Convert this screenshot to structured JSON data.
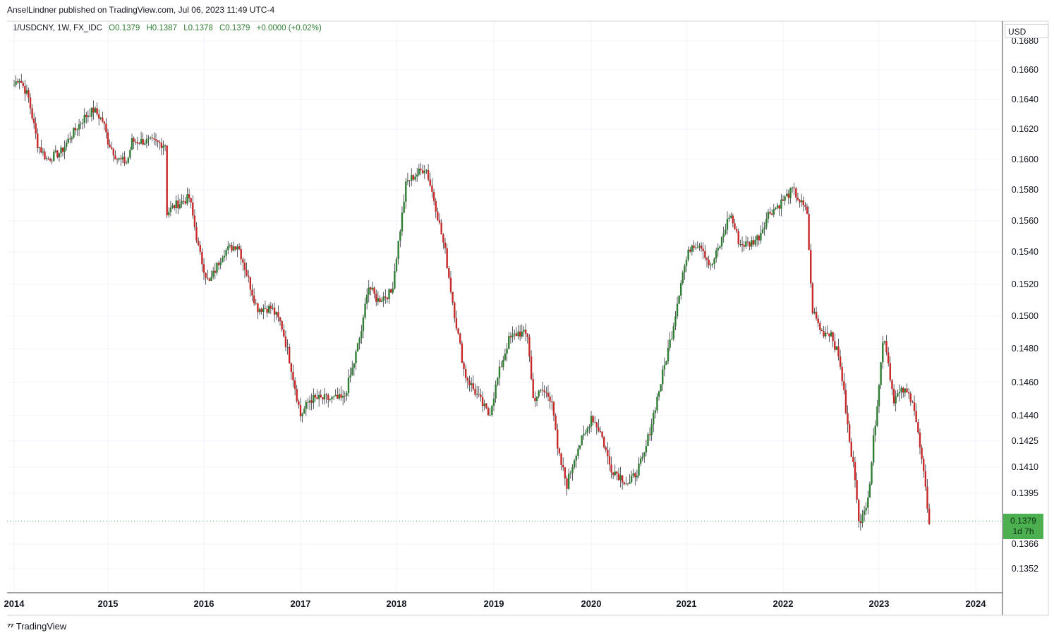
{
  "header": {
    "publisher": "AnselLindner published on TradingView.com, Jul 06, 2023 11:49 UTC-4"
  },
  "legend": {
    "symbol": "1/USDCNY, 1W, FX_IDC",
    "open": "O0.1379",
    "high": "H0.1387",
    "low": "L0.1378",
    "close": "C0.1379",
    "change": "+0.0000 (+0.02%)"
  },
  "currency_label": "USD",
  "last_price": {
    "value": "0.1379",
    "countdown": "1d 7h"
  },
  "footer": {
    "brand": "TradingView"
  },
  "colors": {
    "up": "#2e7d32",
    "down": "#c62828",
    "grid": "#f0f3fa",
    "tag": "#4caf50"
  },
  "chart_data": {
    "type": "candlestick",
    "interval": "1W",
    "series_name": "1/USDCNY",
    "x_tick_labels": [
      "2014",
      "2015",
      "2016",
      "2017",
      "2018",
      "2019",
      "2020",
      "2021",
      "2022",
      "2023",
      "2024"
    ],
    "y_tick_labels": [
      "0.1680",
      "0.1660",
      "0.1640",
      "0.1620",
      "0.1600",
      "0.1580",
      "0.1560",
      "0.1540",
      "0.1520",
      "0.1500",
      "0.1480",
      "0.1460",
      "0.1440",
      "0.1425",
      "0.1410",
      "0.1395",
      "0.1366",
      "0.1352"
    ],
    "y_scale": "nonlinear (price scale)",
    "grid": true,
    "close_path": [
      [
        "2014.00",
        0.165
      ],
      [
        "2014.05",
        0.1655
      ],
      [
        "2014.15",
        0.1642
      ],
      [
        "2014.25",
        0.161
      ],
      [
        "2014.35",
        0.16
      ],
      [
        "2014.50",
        0.1605
      ],
      [
        "2014.60",
        0.1615
      ],
      [
        "2014.75",
        0.1628
      ],
      [
        "2014.85",
        0.1633
      ],
      [
        "2014.95",
        0.1625
      ],
      [
        "2015.00",
        0.1612
      ],
      [
        "2015.10",
        0.16
      ],
      [
        "2015.20",
        0.1598
      ],
      [
        "2015.25",
        0.1612
      ],
      [
        "2015.40",
        0.1612
      ],
      [
        "2015.60",
        0.161
      ],
      [
        "2015.61",
        0.1565
      ],
      [
        "2015.70",
        0.157
      ],
      [
        "2015.85",
        0.1575
      ],
      [
        "2015.95",
        0.154
      ],
      [
        "2016.05",
        0.152
      ],
      [
        "2016.20",
        0.154
      ],
      [
        "2016.35",
        0.1545
      ],
      [
        "2016.45",
        0.1525
      ],
      [
        "2016.55",
        0.1505
      ],
      [
        "2016.70",
        0.1505
      ],
      [
        "2016.80",
        0.1495
      ],
      [
        "2016.90",
        0.147
      ],
      [
        "2017.00",
        0.144
      ],
      [
        "2017.10",
        0.145
      ],
      [
        "2017.30",
        0.145
      ],
      [
        "2017.45",
        0.145
      ],
      [
        "2017.55",
        0.147
      ],
      [
        "2017.65",
        0.1495
      ],
      [
        "2017.70",
        0.152
      ],
      [
        "2017.80",
        0.151
      ],
      [
        "2017.95",
        0.1515
      ],
      [
        "2018.05",
        0.156
      ],
      [
        "2018.10",
        0.1585
      ],
      [
        "2018.20",
        0.159
      ],
      [
        "2018.30",
        0.1595
      ],
      [
        "2018.40",
        0.157
      ],
      [
        "2018.50",
        0.154
      ],
      [
        "2018.60",
        0.15
      ],
      [
        "2018.70",
        0.1465
      ],
      [
        "2018.85",
        0.145
      ],
      [
        "2018.95",
        0.144
      ],
      [
        "2019.05",
        0.1465
      ],
      [
        "2019.15",
        0.1485
      ],
      [
        "2019.25",
        0.149
      ],
      [
        "2019.35",
        0.1488
      ],
      [
        "2019.40",
        0.145
      ],
      [
        "2019.50",
        0.1455
      ],
      [
        "2019.60",
        0.145
      ],
      [
        "2019.65",
        0.142
      ],
      [
        "2019.75",
        0.14
      ],
      [
        "2019.85",
        0.142
      ],
      [
        "2019.95",
        0.143
      ],
      [
        "2020.00",
        0.144
      ],
      [
        "2020.10",
        0.143
      ],
      [
        "2020.20",
        0.141
      ],
      [
        "2020.30",
        0.1405
      ],
      [
        "2020.40",
        0.14
      ],
      [
        "2020.55",
        0.1415
      ],
      [
        "2020.65",
        0.144
      ],
      [
        "2020.75",
        0.1465
      ],
      [
        "2020.85",
        0.149
      ],
      [
        "2020.95",
        0.1525
      ],
      [
        "2021.05",
        0.1545
      ],
      [
        "2021.15",
        0.1545
      ],
      [
        "2021.25",
        0.153
      ],
      [
        "2021.35",
        0.1545
      ],
      [
        "2021.45",
        0.1565
      ],
      [
        "2021.55",
        0.1545
      ],
      [
        "2021.65",
        0.1545
      ],
      [
        "2021.75",
        0.155
      ],
      [
        "2021.85",
        0.1565
      ],
      [
        "2021.95",
        0.157
      ],
      [
        "2022.10",
        0.158
      ],
      [
        "2022.15",
        0.1575
      ],
      [
        "2022.25",
        0.1565
      ],
      [
        "2022.30",
        0.1505
      ],
      [
        "2022.40",
        0.149
      ],
      [
        "2022.50",
        0.149
      ],
      [
        "2022.60",
        0.147
      ],
      [
        "2022.70",
        0.142
      ],
      [
        "2022.75",
        0.1405
      ],
      [
        "2022.80",
        0.1375
      ],
      [
        "2022.85",
        0.1385
      ],
      [
        "2022.90",
        0.14
      ],
      [
        "2022.95",
        0.143
      ],
      [
        "2023.00",
        0.146
      ],
      [
        "2023.05",
        0.149
      ],
      [
        "2023.10",
        0.147
      ],
      [
        "2023.15",
        0.145
      ],
      [
        "2023.25",
        0.1455
      ],
      [
        "2023.35",
        0.145
      ],
      [
        "2023.40",
        0.143
      ],
      [
        "2023.45",
        0.141
      ],
      [
        "2023.52",
        0.1379
      ]
    ]
  }
}
